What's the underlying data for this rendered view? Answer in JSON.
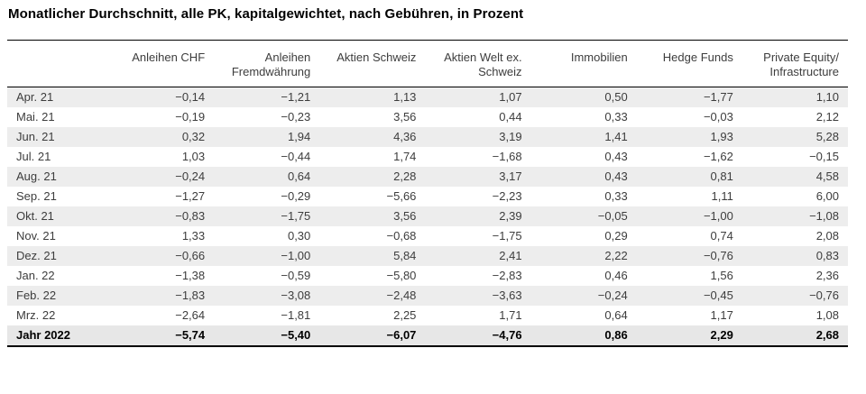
{
  "title": "Monatlicher Durchschnitt, alle PK, kapitalgewichtet, nach Gebühren, in Prozent",
  "table": {
    "columns": [
      "Anleihen CHF",
      "Anleihen\nFremdwährung",
      "Aktien Schweiz",
      "Aktien Welt ex.\nSchweiz",
      "Immobilien",
      "Hedge Funds",
      "Private Equity/\nInfrastructure"
    ],
    "rows": [
      {
        "label": "Apr. 21",
        "values": [
          "−0,14",
          "−1,21",
          "1,13",
          "1,07",
          "0,50",
          "−1,77",
          "1,10"
        ]
      },
      {
        "label": "Mai. 21",
        "values": [
          "−0,19",
          "−0,23",
          "3,56",
          "0,44",
          "0,33",
          "−0,03",
          "2,12"
        ]
      },
      {
        "label": "Jun. 21",
        "values": [
          "0,32",
          "1,94",
          "4,36",
          "3,19",
          "1,41",
          "1,93",
          "5,28"
        ]
      },
      {
        "label": "Jul. 21",
        "values": [
          "1,03",
          "−0,44",
          "1,74",
          "−1,68",
          "0,43",
          "−1,62",
          "−0,15"
        ]
      },
      {
        "label": "Aug. 21",
        "values": [
          "−0,24",
          "0,64",
          "2,28",
          "3,17",
          "0,43",
          "0,81",
          "4,58"
        ]
      },
      {
        "label": "Sep. 21",
        "values": [
          "−1,27",
          "−0,29",
          "−5,66",
          "−2,23",
          "0,33",
          "1,11",
          "6,00"
        ]
      },
      {
        "label": "Okt. 21",
        "values": [
          "−0,83",
          "−1,75",
          "3,56",
          "2,39",
          "−0,05",
          "−1,00",
          "−1,08"
        ]
      },
      {
        "label": "Nov. 21",
        "values": [
          "1,33",
          "0,30",
          "−0,68",
          "−1,75",
          "0,29",
          "0,74",
          "2,08"
        ]
      },
      {
        "label": "Dez. 21",
        "values": [
          "−0,66",
          "−1,00",
          "5,84",
          "2,41",
          "2,22",
          "−0,76",
          "0,83"
        ]
      },
      {
        "label": "Jan. 22",
        "values": [
          "−1,38",
          "−0,59",
          "−5,80",
          "−2,83",
          "0,46",
          "1,56",
          "2,36"
        ]
      },
      {
        "label": "Feb. 22",
        "values": [
          "−1,83",
          "−3,08",
          "−2,48",
          "−3,63",
          "−0,24",
          "−0,45",
          "−0,76"
        ]
      },
      {
        "label": "Mrz. 22",
        "values": [
          "−2,64",
          "−1,81",
          "2,25",
          "1,71",
          "0,64",
          "1,17",
          "1,08"
        ]
      }
    ],
    "total_row": {
      "label": "Jahr 2022",
      "values": [
        "−5,74",
        "−5,40",
        "−6,07",
        "−4,76",
        "0,86",
        "2,29",
        "2,68"
      ]
    }
  },
  "chart_data": {
    "type": "table",
    "title": "Monatlicher Durchschnitt, alle PK, kapitalgewichtet, nach Gebühren, in Prozent",
    "unit": "percent",
    "row_labels": [
      "Apr. 21",
      "Mai. 21",
      "Jun. 21",
      "Jul. 21",
      "Aug. 21",
      "Sep. 21",
      "Okt. 21",
      "Nov. 21",
      "Dez. 21",
      "Jan. 22",
      "Feb. 22",
      "Mrz. 22"
    ],
    "total_label": "Jahr 2022",
    "series": [
      {
        "name": "Anleihen CHF",
        "values": [
          -0.14,
          -0.19,
          0.32,
          1.03,
          -0.24,
          -1.27,
          -0.83,
          1.33,
          -0.66,
          -1.38,
          -1.83,
          -2.64
        ],
        "total": -5.74
      },
      {
        "name": "Anleihen Fremdwährung",
        "values": [
          -1.21,
          -0.23,
          1.94,
          -0.44,
          0.64,
          -0.29,
          -1.75,
          0.3,
          -1.0,
          -0.59,
          -3.08,
          -1.81
        ],
        "total": -5.4
      },
      {
        "name": "Aktien Schweiz",
        "values": [
          1.13,
          3.56,
          4.36,
          1.74,
          2.28,
          -5.66,
          3.56,
          -0.68,
          5.84,
          -5.8,
          -2.48,
          2.25
        ],
        "total": -6.07
      },
      {
        "name": "Aktien Welt ex. Schweiz",
        "values": [
          1.07,
          0.44,
          3.19,
          -1.68,
          3.17,
          -2.23,
          2.39,
          -1.75,
          2.41,
          -2.83,
          -3.63,
          1.71
        ],
        "total": -4.76
      },
      {
        "name": "Immobilien",
        "values": [
          0.5,
          0.33,
          1.41,
          0.43,
          0.43,
          0.33,
          -0.05,
          0.29,
          2.22,
          0.46,
          -0.24,
          0.64
        ],
        "total": 0.86
      },
      {
        "name": "Hedge Funds",
        "values": [
          -1.77,
          -0.03,
          1.93,
          -1.62,
          0.81,
          1.11,
          -1.0,
          0.74,
          -0.76,
          1.56,
          -0.45,
          1.17
        ],
        "total": 2.29
      },
      {
        "name": "Private Equity/Infrastructure",
        "values": [
          1.1,
          2.12,
          5.28,
          -0.15,
          4.58,
          6.0,
          -1.08,
          2.08,
          0.83,
          2.36,
          -0.76,
          1.08
        ],
        "total": 2.68
      }
    ],
    "layout": {
      "striped_rows": true,
      "first_stripe_row": 0,
      "stripe_color": "#ededed",
      "total_row_bold": true
    }
  }
}
